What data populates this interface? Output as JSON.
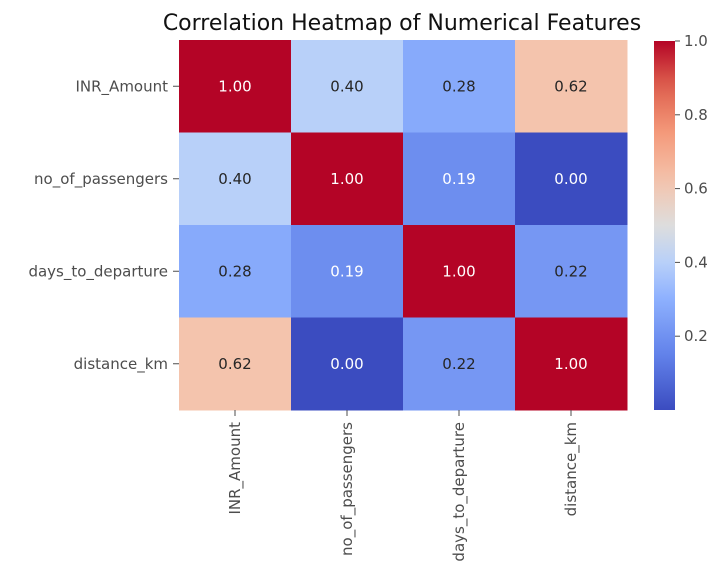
{
  "chart_data": {
    "type": "heatmap",
    "title": "Correlation Heatmap of Numerical Features",
    "rows": [
      "INR_Amount",
      "no_of_passengers",
      "days_to_departure",
      "distance_km"
    ],
    "columns": [
      "INR_Amount",
      "no_of_passengers",
      "days_to_departure",
      "distance_km"
    ],
    "values": [
      [
        1.0,
        0.4,
        0.28,
        0.62
      ],
      [
        0.4,
        1.0,
        0.19,
        0.0
      ],
      [
        0.28,
        0.19,
        1.0,
        0.22
      ],
      [
        0.62,
        0.0,
        0.22,
        1.0
      ]
    ],
    "value_labels": [
      [
        "1.00",
        "0.40",
        "0.28",
        "0.62"
      ],
      [
        "0.40",
        "1.00",
        "0.19",
        "0.00"
      ],
      [
        "0.28",
        "0.19",
        "1.00",
        "0.22"
      ],
      [
        "0.62",
        "0.00",
        "0.22",
        "1.00"
      ]
    ],
    "colormap": "coolwarm",
    "colormap_low": "#3b4cc0",
    "colormap_mid": "#dddddd",
    "colormap_high": "#b40426",
    "vmin": 0.0,
    "vmax": 1.0,
    "colorbar_ticks": [
      0.2,
      0.4,
      0.6,
      0.8,
      1.0
    ],
    "colorbar_tick_labels": [
      "0.2",
      "0.4",
      "0.6",
      "0.8",
      "1.0"
    ],
    "colorbar_placement": "right",
    "grid": false
  }
}
